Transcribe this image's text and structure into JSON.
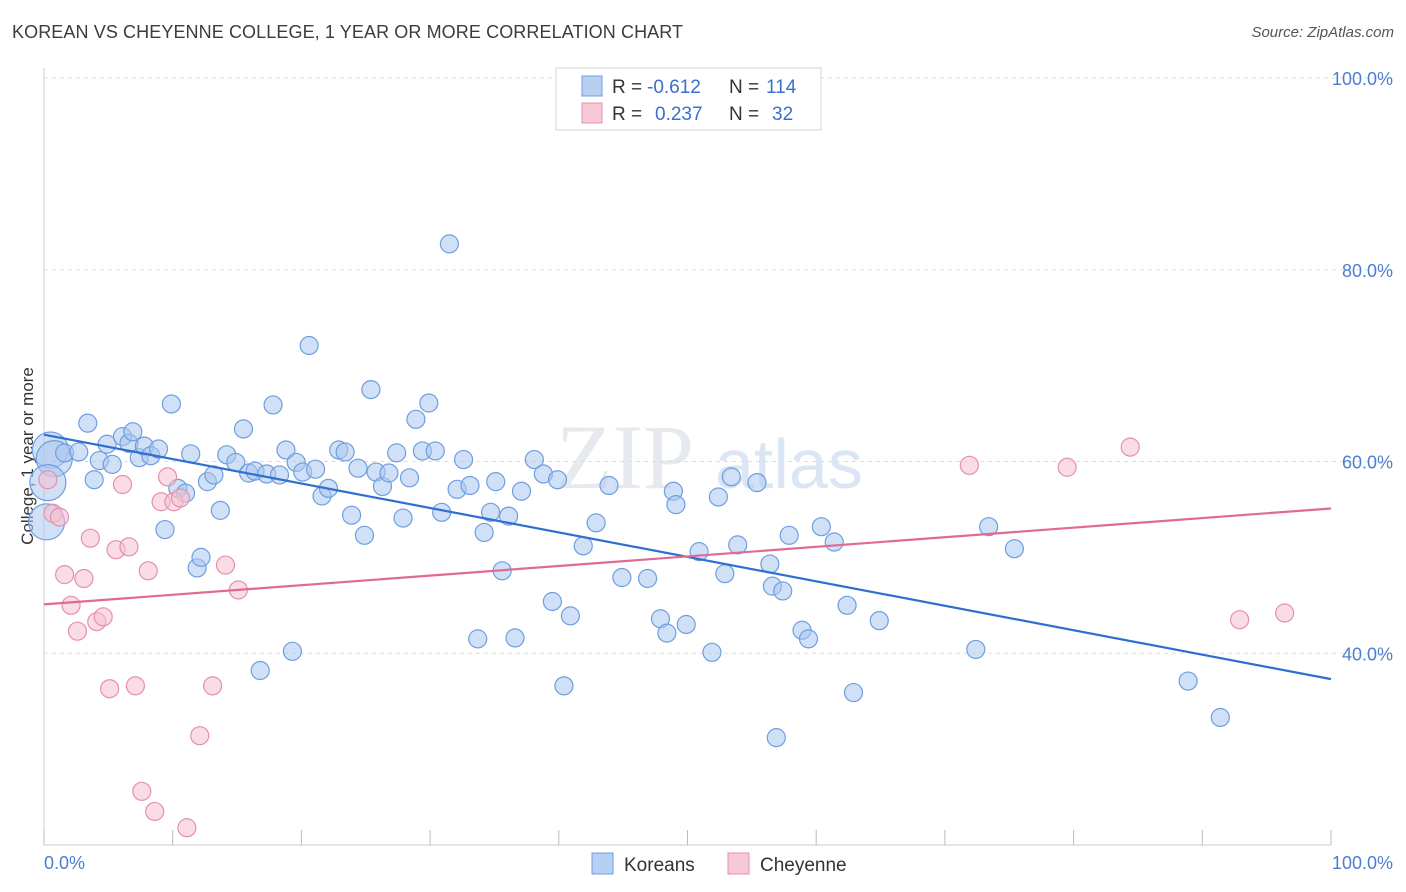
{
  "header": {
    "title": "KOREAN VS CHEYENNE COLLEGE, 1 YEAR OR MORE CORRELATION CHART",
    "source": "Source: ZipAtlas.com"
  },
  "watermark": {
    "zip": "ZIP",
    "atlas": "atlas"
  },
  "legend_top": {
    "r_label": "R =",
    "n_label": "N =",
    "rows": [
      {
        "r": "-0.612",
        "n": "114"
      },
      {
        "r": "0.237",
        "n": "32"
      }
    ]
  },
  "legend_bottom": {
    "items": [
      "Koreans",
      "Cheyenne"
    ]
  },
  "colors": {
    "blue_fill": "#a9c6ef",
    "blue_stroke": "#6f9ee0",
    "blue_line": "#2f6fd0",
    "pink_fill": "#f6c0d0",
    "pink_stroke": "#e690ab",
    "pink_line": "#e06a94",
    "tick_text": "#4a7fd0",
    "grid": "#dddddd"
  },
  "chart_data": {
    "type": "scatter",
    "title": "KOREAN VS CHEYENNE COLLEGE, 1 YEAR OR MORE CORRELATION CHART",
    "xlabel": "",
    "ylabel": "College, 1 year or more",
    "xlim": [
      0,
      100
    ],
    "ylim": [
      20,
      100
    ],
    "x_tick_labels": [
      "0.0%",
      "100.0%"
    ],
    "y_ticks": [
      40,
      60,
      80,
      100
    ],
    "y_tick_labels": [
      "40.0%",
      "60.0%",
      "80.0%",
      "100.0%"
    ],
    "grid": true,
    "legend_position": "top-center",
    "series": [
      {
        "name": "Koreans",
        "r": -0.612,
        "n": 114,
        "trend": [
          [
            0,
            62.8
          ],
          [
            100,
            37.3
          ]
        ],
        "points": [
          [
            0.5,
            61.2
          ],
          [
            0.8,
            60.3
          ],
          [
            1.6,
            60.9
          ],
          [
            2.7,
            61.0
          ],
          [
            3.4,
            64.0
          ],
          [
            3.9,
            58.1
          ],
          [
            4.3,
            60.1
          ],
          [
            4.9,
            61.8
          ],
          [
            5.3,
            59.7
          ],
          [
            6.1,
            62.6
          ],
          [
            6.6,
            61.9
          ],
          [
            6.9,
            63.1
          ],
          [
            7.4,
            60.4
          ],
          [
            7.8,
            61.6
          ],
          [
            8.3,
            60.6
          ],
          [
            8.9,
            61.3
          ],
          [
            9.4,
            52.9
          ],
          [
            9.9,
            66.0
          ],
          [
            10.4,
            57.2
          ],
          [
            11.0,
            56.7
          ],
          [
            11.4,
            60.8
          ],
          [
            11.9,
            48.9
          ],
          [
            12.2,
            50.0
          ],
          [
            12.7,
            57.9
          ],
          [
            13.2,
            58.6
          ],
          [
            13.7,
            54.9
          ],
          [
            14.2,
            60.7
          ],
          [
            14.9,
            59.9
          ],
          [
            15.5,
            63.4
          ],
          [
            15.9,
            58.8
          ],
          [
            16.4,
            59.0
          ],
          [
            16.8,
            38.2
          ],
          [
            17.3,
            58.7
          ],
          [
            17.8,
            65.9
          ],
          [
            18.3,
            58.6
          ],
          [
            18.8,
            61.2
          ],
          [
            19.3,
            40.2
          ],
          [
            19.6,
            59.9
          ],
          [
            20.1,
            58.9
          ],
          [
            20.6,
            72.1
          ],
          [
            21.1,
            59.2
          ],
          [
            21.6,
            56.4
          ],
          [
            22.1,
            57.2
          ],
          [
            22.9,
            61.2
          ],
          [
            23.4,
            61.0
          ],
          [
            23.9,
            54.4
          ],
          [
            24.4,
            59.3
          ],
          [
            24.9,
            52.3
          ],
          [
            25.4,
            67.5
          ],
          [
            25.8,
            58.9
          ],
          [
            26.3,
            57.4
          ],
          [
            26.8,
            58.8
          ],
          [
            27.4,
            60.9
          ],
          [
            27.9,
            54.1
          ],
          [
            28.4,
            58.3
          ],
          [
            28.9,
            64.4
          ],
          [
            29.4,
            61.1
          ],
          [
            29.9,
            66.1
          ],
          [
            30.4,
            61.1
          ],
          [
            30.9,
            54.7
          ],
          [
            31.5,
            82.7
          ],
          [
            32.1,
            57.1
          ],
          [
            32.6,
            60.2
          ],
          [
            33.1,
            57.5
          ],
          [
            33.7,
            41.5
          ],
          [
            34.2,
            52.6
          ],
          [
            34.7,
            54.7
          ],
          [
            35.1,
            57.9
          ],
          [
            35.6,
            48.6
          ],
          [
            36.1,
            54.3
          ],
          [
            36.6,
            41.6
          ],
          [
            37.1,
            56.9
          ],
          [
            38.1,
            60.2
          ],
          [
            38.8,
            58.7
          ],
          [
            39.5,
            45.4
          ],
          [
            39.9,
            58.1
          ],
          [
            40.4,
            36.6
          ],
          [
            40.9,
            43.9
          ],
          [
            41.9,
            51.2
          ],
          [
            42.9,
            53.6
          ],
          [
            43.9,
            57.5
          ],
          [
            44.9,
            47.9
          ],
          [
            46.9,
            47.8
          ],
          [
            47.9,
            43.6
          ],
          [
            48.4,
            42.1
          ],
          [
            48.9,
            56.9
          ],
          [
            49.1,
            55.5
          ],
          [
            49.9,
            43.0
          ],
          [
            50.9,
            50.6
          ],
          [
            51.9,
            40.1
          ],
          [
            52.4,
            56.3
          ],
          [
            52.9,
            48.3
          ],
          [
            53.4,
            58.4
          ],
          [
            53.9,
            51.3
          ],
          [
            55.4,
            57.8
          ],
          [
            56.4,
            49.3
          ],
          [
            56.6,
            47.0
          ],
          [
            56.9,
            31.2
          ],
          [
            57.9,
            52.3
          ],
          [
            57.4,
            46.5
          ],
          [
            58.9,
            42.4
          ],
          [
            59.4,
            41.5
          ],
          [
            60.4,
            53.2
          ],
          [
            61.4,
            51.6
          ],
          [
            62.4,
            45.0
          ],
          [
            62.9,
            35.9
          ],
          [
            64.9,
            43.4
          ],
          [
            72.4,
            40.4
          ],
          [
            73.4,
            53.2
          ],
          [
            75.4,
            50.9
          ],
          [
            88.9,
            37.1
          ],
          [
            91.4,
            33.3
          ],
          [
            0.3,
            57.8
          ],
          [
            0.2,
            53.7
          ]
        ]
      },
      {
        "name": "Cheyenne",
        "r": 0.237,
        "n": 32,
        "trend": [
          [
            0,
            45.1
          ],
          [
            100,
            55.1
          ]
        ],
        "points": [
          [
            0.3,
            58.1
          ],
          [
            0.7,
            54.6
          ],
          [
            1.2,
            54.2
          ],
          [
            1.6,
            48.2
          ],
          [
            2.1,
            45.0
          ],
          [
            2.6,
            42.3
          ],
          [
            3.1,
            47.8
          ],
          [
            3.6,
            52.0
          ],
          [
            4.1,
            43.3
          ],
          [
            4.6,
            43.8
          ],
          [
            5.1,
            36.3
          ],
          [
            5.6,
            50.8
          ],
          [
            6.1,
            57.6
          ],
          [
            6.6,
            51.1
          ],
          [
            7.1,
            36.6
          ],
          [
            7.6,
            25.6
          ],
          [
            8.1,
            48.6
          ],
          [
            8.6,
            23.5
          ],
          [
            9.1,
            55.8
          ],
          [
            9.6,
            58.4
          ],
          [
            10.1,
            55.8
          ],
          [
            10.6,
            56.2
          ],
          [
            11.1,
            21.8
          ],
          [
            12.1,
            31.4
          ],
          [
            13.1,
            36.6
          ],
          [
            14.1,
            49.2
          ],
          [
            15.1,
            46.6
          ],
          [
            71.9,
            59.6
          ],
          [
            79.5,
            59.4
          ],
          [
            84.4,
            61.5
          ],
          [
            96.4,
            44.2
          ],
          [
            92.9,
            43.5
          ]
        ]
      }
    ]
  }
}
